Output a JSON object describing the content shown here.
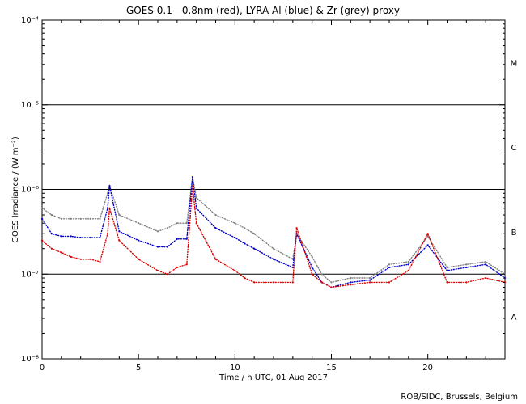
{
  "chart_data": {
    "type": "scatter",
    "title": "GOES 0.1—0.8nm (red), LYRA Al (blue) & Zr (grey) proxy",
    "xlabel": "Time / h UTC, 01 Aug 2017",
    "ylabel": "GOES Irradiance / (W m⁻²)",
    "xlim": [
      0,
      24
    ],
    "ylim_log10": [
      -8,
      -4
    ],
    "x_ticks": [
      0,
      5,
      10,
      15,
      20
    ],
    "x_tick_labels": [
      "0",
      "5",
      "10",
      "15",
      "20"
    ],
    "y_ticks_log10": [
      -8,
      -7,
      -6,
      -5,
      -4
    ],
    "y_tick_labels": [
      "10⁻⁸",
      "10⁻⁷",
      "10⁻⁶",
      "10⁻⁵",
      "10⁻⁴"
    ],
    "reference_lines_log10": [
      -7,
      -6,
      -5
    ],
    "flare_classes": [
      {
        "label": "M",
        "log10_mid": -4.5
      },
      {
        "label": "C",
        "log10_mid": -5.5
      },
      {
        "label": "B",
        "log10_mid": -6.5
      },
      {
        "label": "A",
        "log10_mid": -7.5
      }
    ],
    "series": [
      {
        "name": "Zr (grey) proxy",
        "color": "#808080",
        "x": [
          0,
          0.5,
          1,
          1.5,
          2,
          2.5,
          3,
          3.4,
          3.5,
          4,
          5,
          6,
          6.5,
          7,
          7.5,
          7.8,
          8,
          9,
          10,
          10.5,
          11,
          12,
          13,
          13.2,
          14,
          14.5,
          15,
          16,
          17,
          18,
          19,
          20,
          21,
          22,
          23,
          24
        ],
        "y": [
          6e-07,
          5e-07,
          4.5e-07,
          4.5e-07,
          4.5e-07,
          4.5e-07,
          4.5e-07,
          9e-07,
          1.1e-06,
          5e-07,
          4e-07,
          3.2e-07,
          3.5e-07,
          4e-07,
          4e-07,
          1.4e-06,
          8e-07,
          5e-07,
          4e-07,
          3.5e-07,
          3e-07,
          2e-07,
          1.5e-07,
          3e-07,
          1.6e-07,
          1e-07,
          8e-08,
          9e-08,
          9e-08,
          1.3e-07,
          1.4e-07,
          2.8e-07,
          1.2e-07,
          1.3e-07,
          1.4e-07,
          1e-07
        ]
      },
      {
        "name": "LYRA Al (blue)",
        "color": "#0000cc",
        "x": [
          0,
          0.5,
          1,
          1.5,
          2,
          2.5,
          3,
          3.4,
          3.5,
          4,
          5,
          6,
          6.5,
          7,
          7.5,
          7.8,
          8,
          9,
          10,
          10.5,
          11,
          12,
          13,
          13.2,
          14,
          14.5,
          15,
          16,
          17,
          18,
          19,
          20,
          21,
          22,
          23,
          24
        ],
        "y": [
          4.5e-07,
          3e-07,
          2.8e-07,
          2.8e-07,
          2.7e-07,
          2.7e-07,
          2.7e-07,
          6e-07,
          1.1e-06,
          3.2e-07,
          2.5e-07,
          2.1e-07,
          2.1e-07,
          2.6e-07,
          2.6e-07,
          1.4e-06,
          6e-07,
          3.5e-07,
          2.7e-07,
          2.3e-07,
          2e-07,
          1.5e-07,
          1.2e-07,
          3e-07,
          1.2e-07,
          8e-08,
          7e-08,
          8e-08,
          8.5e-08,
          1.2e-07,
          1.3e-07,
          2.2e-07,
          1.1e-07,
          1.2e-07,
          1.3e-07,
          9e-08
        ]
      },
      {
        "name": "GOES 0.1—0.8nm (red)",
        "color": "#dd0000",
        "x": [
          0,
          0.5,
          1,
          1.5,
          2,
          2.5,
          3,
          3.4,
          3.5,
          4,
          5,
          6,
          6.5,
          7,
          7.5,
          7.8,
          8,
          9,
          10,
          10.5,
          11,
          12,
          13,
          13.2,
          14,
          14.5,
          15,
          16,
          17,
          18,
          19,
          20,
          21,
          22,
          23,
          24
        ],
        "y": [
          2.5e-07,
          2e-07,
          1.8e-07,
          1.6e-07,
          1.5e-07,
          1.5e-07,
          1.4e-07,
          3e-07,
          6e-07,
          2.5e-07,
          1.5e-07,
          1.1e-07,
          1e-07,
          1.2e-07,
          1.3e-07,
          1.1e-06,
          4e-07,
          1.5e-07,
          1.1e-07,
          9e-08,
          8e-08,
          8e-08,
          8e-08,
          3.5e-07,
          1e-07,
          8e-08,
          7e-08,
          7.5e-08,
          8e-08,
          8e-08,
          1.1e-07,
          3e-07,
          8e-08,
          8e-08,
          9e-08,
          8e-08
        ]
      }
    ]
  },
  "footer": {
    "credit": "ROB/SIDC, Brussels, Belgium"
  }
}
